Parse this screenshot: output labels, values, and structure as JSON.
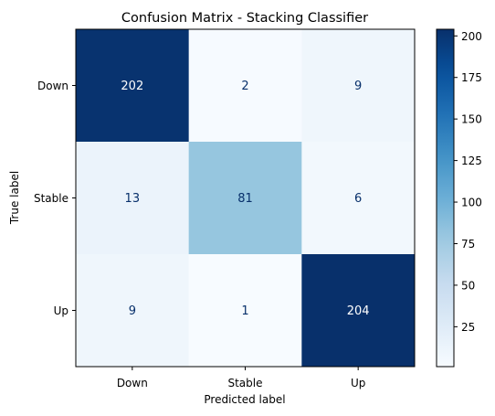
{
  "chart_data": {
    "type": "heatmap",
    "title": "Confusion Matrix - Stacking Classifier",
    "xlabel": "Predicted label",
    "ylabel": "True label",
    "x_categories": [
      "Down",
      "Stable",
      "Up"
    ],
    "y_categories": [
      "Down",
      "Stable",
      "Up"
    ],
    "values": [
      [
        202,
        2,
        9
      ],
      [
        13,
        81,
        6
      ],
      [
        9,
        1,
        204
      ]
    ],
    "colormap": "Blues",
    "color_range": [
      1,
      204
    ],
    "colorbar_ticks": [
      "25",
      "50",
      "75",
      "100",
      "125",
      "150",
      "175",
      "200"
    ],
    "colorbar_tick_values": [
      25,
      50,
      75,
      100,
      125,
      150,
      175,
      200
    ],
    "grid": false
  }
}
